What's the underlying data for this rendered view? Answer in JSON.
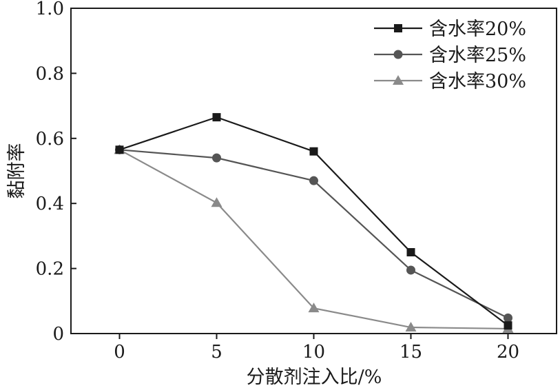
{
  "chart_data": {
    "type": "line",
    "xlabel": "分散剂注入比/%",
    "ylabel": "黏附率",
    "x": [
      0,
      5,
      10,
      15,
      20
    ],
    "xlim": [
      -2.5,
      22.5
    ],
    "ylim": [
      0,
      1.0
    ],
    "xticks": [
      "0",
      "5",
      "10",
      "15",
      "20"
    ],
    "yticks": [
      "0",
      "0.2",
      "0.4",
      "0.6",
      "0.8",
      "1.0"
    ],
    "ytick_values": [
      0,
      0.2,
      0.4,
      0.6,
      0.8,
      1.0
    ],
    "grid": false,
    "legend_position": "top-right",
    "series": [
      {
        "name": "含水率20%",
        "marker": "square",
        "color": "#1a1a1a",
        "values": [
          0.565,
          0.665,
          0.56,
          0.25,
          0.025
        ]
      },
      {
        "name": "含水率25%",
        "marker": "circle",
        "color": "#555555",
        "values": [
          0.565,
          0.54,
          0.47,
          0.195,
          0.048
        ]
      },
      {
        "name": "含水率30%",
        "marker": "triangle",
        "color": "#8a8a8a",
        "values": [
          0.565,
          0.402,
          0.078,
          0.019,
          0.015
        ]
      }
    ]
  }
}
